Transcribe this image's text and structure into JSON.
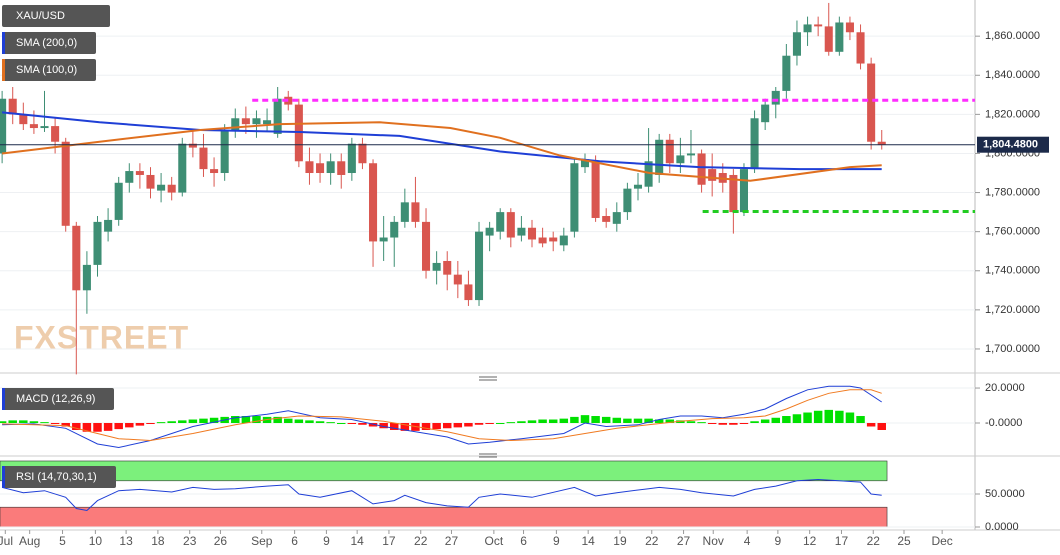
{
  "chart_data": [
    {
      "type": "candlestick",
      "title": "XAU/USD",
      "watermark": "FXSTREET",
      "up_color": "#3e8e74",
      "down_color": "#d9564f",
      "ohlc": [
        [
          1800,
          1832,
          1795,
          1828
        ],
        [
          1828,
          1834,
          1815,
          1820
        ],
        [
          1820,
          1826,
          1812,
          1815
        ],
        [
          1815,
          1822,
          1810,
          1813
        ],
        [
          1813,
          1832,
          1811,
          1814
        ],
        [
          1814,
          1818,
          1800,
          1806
        ],
        [
          1806,
          1808,
          1760,
          1763
        ],
        [
          1763,
          1765,
          1687,
          1730
        ],
        [
          1730,
          1750,
          1718,
          1743
        ],
        [
          1743,
          1768,
          1737,
          1765
        ],
        [
          1760,
          1772,
          1755,
          1766
        ],
        [
          1766,
          1788,
          1763,
          1785
        ],
        [
          1785,
          1795,
          1780,
          1791
        ],
        [
          1791,
          1795,
          1782,
          1789
        ],
        [
          1789,
          1793,
          1777,
          1782
        ],
        [
          1781,
          1790,
          1775,
          1784
        ],
        [
          1784,
          1788,
          1776,
          1780
        ],
        [
          1780,
          1808,
          1778,
          1805
        ],
        [
          1805,
          1812,
          1798,
          1803
        ],
        [
          1803,
          1810,
          1788,
          1792
        ],
        [
          1792,
          1798,
          1783,
          1790
        ],
        [
          1790,
          1815,
          1786,
          1812
        ],
        [
          1812,
          1823,
          1808,
          1818
        ],
        [
          1818,
          1824,
          1810,
          1815
        ],
        [
          1815,
          1822,
          1808,
          1818
        ],
        [
          1815,
          1823,
          1811,
          1817
        ],
        [
          1810,
          1834,
          1808,
          1828
        ],
        [
          1829,
          1832,
          1822,
          1825
        ],
        [
          1825,
          1828,
          1793,
          1796
        ],
        [
          1796,
          1803,
          1784,
          1790
        ],
        [
          1795,
          1800,
          1785,
          1790
        ],
        [
          1790,
          1800,
          1784,
          1796
        ],
        [
          1796,
          1800,
          1782,
          1789
        ],
        [
          1790,
          1808,
          1786,
          1805
        ],
        [
          1805,
          1808,
          1792,
          1795
        ],
        [
          1795,
          1797,
          1742,
          1755
        ],
        [
          1755,
          1768,
          1745,
          1757
        ],
        [
          1757,
          1768,
          1742,
          1765
        ],
        [
          1765,
          1782,
          1762,
          1775
        ],
        [
          1775,
          1788,
          1762,
          1765
        ],
        [
          1765,
          1772,
          1736,
          1740
        ],
        [
          1740,
          1750,
          1733,
          1744
        ],
        [
          1745,
          1750,
          1730,
          1738
        ],
        [
          1738,
          1745,
          1726,
          1733
        ],
        [
          1733,
          1740,
          1722,
          1725
        ],
        [
          1725,
          1765,
          1722,
          1760
        ],
        [
          1758,
          1765,
          1750,
          1762
        ],
        [
          1760,
          1772,
          1756,
          1770
        ],
        [
          1770,
          1772,
          1752,
          1757
        ],
        [
          1758,
          1768,
          1755,
          1762
        ],
        [
          1762,
          1766,
          1752,
          1756
        ],
        [
          1757,
          1762,
          1752,
          1754
        ],
        [
          1757,
          1760,
          1750,
          1755
        ],
        [
          1753,
          1762,
          1750,
          1758
        ],
        [
          1760,
          1797,
          1757,
          1795
        ],
        [
          1793,
          1800,
          1790,
          1797
        ],
        [
          1796,
          1799,
          1765,
          1767
        ],
        [
          1768,
          1772,
          1762,
          1765
        ],
        [
          1764,
          1775,
          1760,
          1770
        ],
        [
          1770,
          1785,
          1766,
          1782
        ],
        [
          1782,
          1790,
          1776,
          1784
        ],
        [
          1783,
          1813,
          1780,
          1796
        ],
        [
          1789,
          1810,
          1785,
          1807
        ],
        [
          1807,
          1810,
          1790,
          1795
        ],
        [
          1795,
          1808,
          1790,
          1799
        ],
        [
          1799,
          1812,
          1795,
          1800
        ],
        [
          1800,
          1802,
          1780,
          1784
        ],
        [
          1792,
          1800,
          1778,
          1786
        ],
        [
          1790,
          1795,
          1780,
          1785
        ],
        [
          1789,
          1792,
          1759,
          1770
        ],
        [
          1770,
          1795,
          1768,
          1792
        ],
        [
          1792,
          1822,
          1790,
          1818
        ],
        [
          1816,
          1828,
          1812,
          1825
        ],
        [
          1825,
          1834,
          1818,
          1832
        ],
        [
          1832,
          1856,
          1828,
          1850
        ],
        [
          1850,
          1868,
          1845,
          1862
        ],
        [
          1862,
          1870,
          1855,
          1866
        ],
        [
          1866,
          1870,
          1860,
          1865
        ],
        [
          1865,
          1877,
          1850,
          1852
        ],
        [
          1852,
          1870,
          1850,
          1867
        ],
        [
          1867,
          1870,
          1858,
          1862
        ],
        [
          1862,
          1866,
          1843,
          1846
        ],
        [
          1846,
          1849,
          1802,
          1806
        ],
        [
          1806,
          1812,
          1802,
          1804.48
        ]
      ],
      "series": [
        {
          "name": "SMA (200,0)",
          "color": "#1f3fd6",
          "x": [
            0,
            9.2,
            18.7,
            28.1,
            37.5,
            47,
            56.4,
            65.8,
            75.3,
            83
          ],
          "values": [
            1821,
            1816,
            1812,
            1811,
            1809,
            1801,
            1796,
            1793,
            1792,
            1792
          ]
        },
        {
          "name": "SMA (100,0)",
          "color": "#e0701f",
          "x": [
            0,
            9.2,
            18.7,
            26.2,
            35.6,
            42.3,
            47,
            52.6,
            61.1,
            70.6,
            80,
            83
          ],
          "values": [
            1800,
            1806,
            1812,
            1815,
            1816,
            1813,
            1808,
            1799,
            1790,
            1786,
            1793,
            1794
          ]
        }
      ],
      "levels": [
        {
          "value": 1827.2,
          "color": "#ff2cff",
          "x_start": 23.6
        },
        {
          "value": 1770.3,
          "color": "#22cc22",
          "x_start": 66.1
        }
      ],
      "last_price": {
        "value": 1804.48,
        "label": "1,804.4800"
      },
      "xlim": [
        -0.2,
        91.8
      ],
      "ylim": [
        1687.7,
        1878.5
      ],
      "yticks": [
        {
          "value": 1700,
          "label": "1,700.0000"
        },
        {
          "value": 1720,
          "label": "1,720.0000"
        },
        {
          "value": 1740,
          "label": "1,740.0000"
        },
        {
          "value": 1760,
          "label": "1,760.0000"
        },
        {
          "value": 1780,
          "label": "1,780.0000"
        },
        {
          "value": 1800,
          "label": "1,800.0000"
        },
        {
          "value": 1820,
          "label": "1,820.0000"
        },
        {
          "value": 1840,
          "label": "1,840.0000"
        },
        {
          "value": 1860,
          "label": "1,860.0000"
        }
      ],
      "xticks": [
        {
          "value": 0.3,
          "label": "Jul"
        },
        {
          "value": 2.6,
          "label": "Aug"
        },
        {
          "value": 5.7,
          "label": "5"
        },
        {
          "value": 8.8,
          "label": "10"
        },
        {
          "value": 11.7,
          "label": "13"
        },
        {
          "value": 14.7,
          "label": "18"
        },
        {
          "value": 17.7,
          "label": "23"
        },
        {
          "value": 20.6,
          "label": "26"
        },
        {
          "value": 24.5,
          "label": "Sep"
        },
        {
          "value": 27.6,
          "label": "6"
        },
        {
          "value": 30.6,
          "label": "9"
        },
        {
          "value": 33.5,
          "label": "14"
        },
        {
          "value": 36.5,
          "label": "17"
        },
        {
          "value": 39.5,
          "label": "22"
        },
        {
          "value": 42.4,
          "label": "27"
        },
        {
          "value": 46.4,
          "label": "Oct"
        },
        {
          "value": 49.2,
          "label": "6"
        },
        {
          "value": 52.3,
          "label": "9"
        },
        {
          "value": 55.3,
          "label": "14"
        },
        {
          "value": 58.3,
          "label": "19"
        },
        {
          "value": 61.3,
          "label": "22"
        },
        {
          "value": 64.3,
          "label": "27"
        },
        {
          "value": 67.1,
          "label": "Nov"
        },
        {
          "value": 70.3,
          "label": "4"
        },
        {
          "value": 73.2,
          "label": "9"
        },
        {
          "value": 76.2,
          "label": "12"
        },
        {
          "value": 79.2,
          "label": "17"
        },
        {
          "value": 82.2,
          "label": "22"
        },
        {
          "value": 85.1,
          "label": "25"
        },
        {
          "value": 88.7,
          "label": "Dec"
        }
      ]
    },
    {
      "type": "macd",
      "title": "MACD (12,26,9)",
      "up_color": "#00e000",
      "down_color": "#ff1010",
      "histogram": [
        1,
        1.5,
        1.5,
        1,
        0.5,
        -0.5,
        -2,
        -4,
        -5,
        -5,
        -4.5,
        -3.5,
        -2.5,
        -1.5,
        -0.5,
        0.5,
        1,
        1.5,
        2,
        2.5,
        3,
        3.5,
        4,
        4,
        4,
        3.5,
        3.5,
        2.5,
        2,
        1.5,
        1,
        0.5,
        0,
        -0.5,
        -1,
        -2,
        -3,
        -4,
        -4.5,
        -4.5,
        -4,
        -3.5,
        -3,
        -2.5,
        -2,
        -1,
        -0.5,
        0,
        0.5,
        1,
        1.5,
        2,
        2,
        2.5,
        3.5,
        4.5,
        4,
        3.5,
        3,
        2.5,
        2.5,
        2.5,
        2,
        2,
        1.5,
        1,
        0.5,
        -0.5,
        -1,
        -1,
        -0.5,
        1,
        2,
        3,
        4,
        5,
        6,
        7,
        7.5,
        7,
        6,
        4,
        -2,
        -4
      ],
      "series": [
        {
          "color": "#1f3fd6",
          "x": [
            0,
            3,
            6,
            9,
            11,
            14,
            18,
            22,
            25,
            27,
            30,
            33,
            36,
            39,
            42,
            44,
            46,
            49,
            53,
            55,
            57,
            60,
            62,
            64,
            66,
            68,
            70,
            72,
            74,
            76,
            78,
            80,
            81,
            83
          ],
          "values": [
            -1,
            -0.5,
            -3,
            -12,
            -14,
            -10,
            -2,
            3,
            5,
            7,
            3,
            2,
            -2,
            -5,
            -8,
            -12,
            -11,
            -9,
            -6,
            0,
            -2,
            -1,
            2,
            4,
            4,
            3,
            5,
            8,
            14,
            19,
            21,
            21,
            20,
            12
          ]
        },
        {
          "color": "#f07a20",
          "x": [
            0,
            3,
            6,
            9,
            11,
            14,
            18,
            22,
            25,
            28,
            32,
            36,
            39,
            42,
            45,
            48,
            52,
            55,
            58,
            61,
            64,
            67,
            70,
            72,
            74,
            76,
            78,
            80,
            82,
            83
          ],
          "values": [
            -0.5,
            -1,
            -1.5,
            -6,
            -9,
            -10,
            -6,
            -1,
            2,
            4,
            3.5,
            1,
            -2,
            -5,
            -9,
            -10,
            -9,
            -6,
            -3,
            -1,
            1,
            2.5,
            3,
            4,
            8,
            13,
            17,
            19,
            19,
            17
          ]
        }
      ],
      "ylim": [
        -18.3,
        24.6
      ],
      "yticks": [
        {
          "value": 0,
          "label": "-0.0000"
        },
        {
          "value": 20,
          "label": "20.0000"
        }
      ]
    },
    {
      "type": "rsi",
      "title": "RSI (14,70,30,1)",
      "bands": [
        {
          "from": 70,
          "to": 100,
          "color": "#7cf07c"
        },
        {
          "from": 0,
          "to": 30,
          "color": "#fa7b7b"
        }
      ],
      "series": [
        {
          "color": "#1f3fd6",
          "x": [
            0,
            2,
            4,
            6,
            7,
            8,
            9,
            11,
            13,
            16,
            18,
            20,
            22,
            25,
            27,
            28,
            30,
            33,
            35,
            37,
            38,
            40,
            42,
            44,
            45,
            47,
            50,
            54,
            56,
            58,
            61,
            62,
            64,
            66,
            69,
            71,
            73,
            75,
            77,
            79,
            81,
            82,
            83
          ],
          "values": [
            60,
            52,
            55,
            45,
            28,
            25,
            40,
            55,
            57,
            53,
            60,
            57,
            58,
            62,
            64,
            50,
            45,
            55,
            35,
            40,
            48,
            37,
            32,
            30,
            45,
            50,
            45,
            60,
            47,
            52,
            58,
            60,
            57,
            52,
            47,
            57,
            62,
            70,
            72,
            70,
            68,
            50,
            48
          ]
        }
      ],
      "ylim": [
        -1.5,
        101.5
      ],
      "yticks": [
        {
          "value": 0,
          "label": "0.0000"
        },
        {
          "value": 50,
          "label": "50.0000"
        }
      ]
    }
  ]
}
